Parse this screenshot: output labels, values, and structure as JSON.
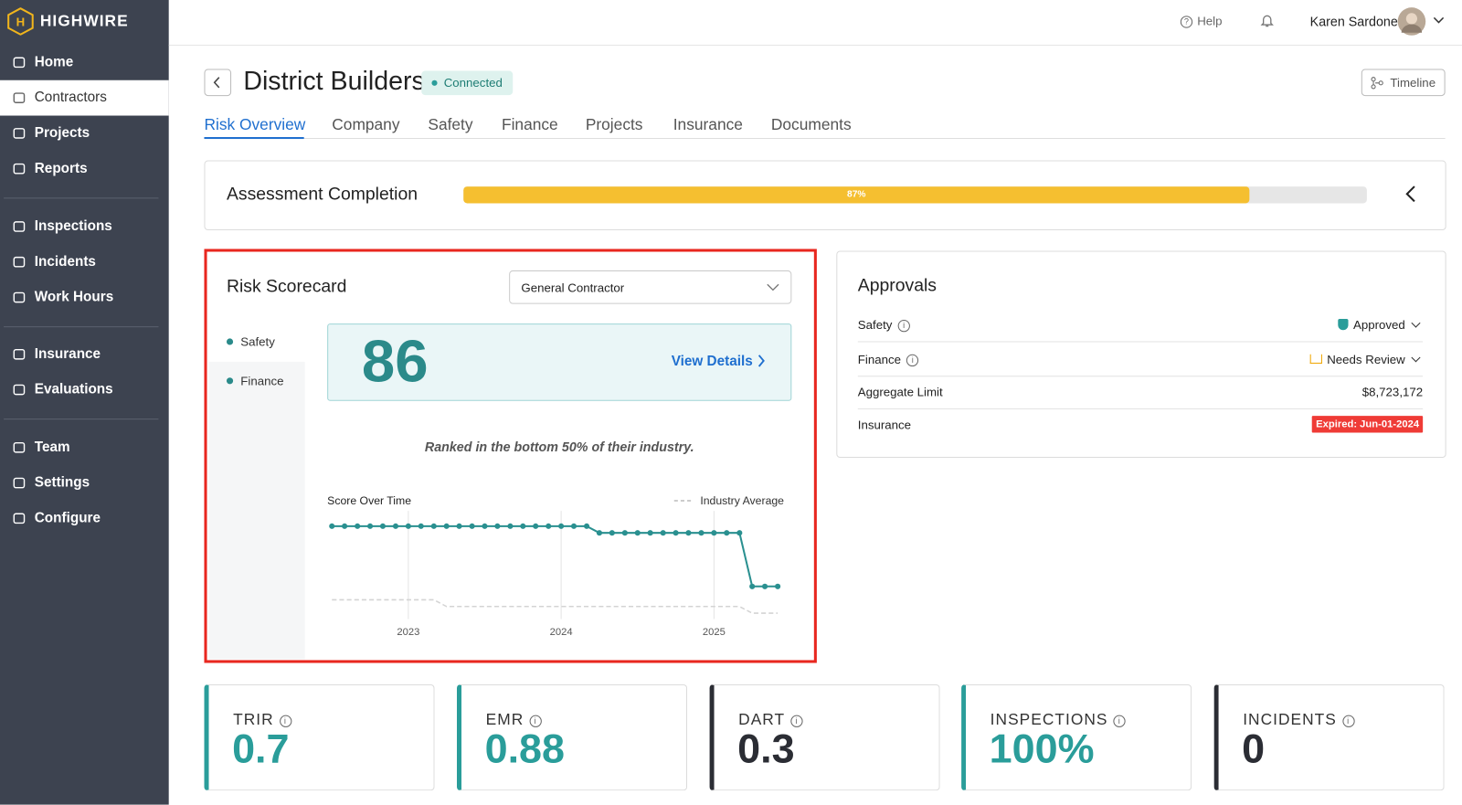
{
  "sidebar": {
    "brand": "HIGHWIRE",
    "nav": [
      "Home",
      "Contractors",
      "Projects",
      "Reports",
      "Inspections",
      "Incidents",
      "Work Hours",
      "Insurance",
      "Evaluations",
      "Team",
      "Settings",
      "Configure"
    ]
  },
  "topbar": {
    "help": "Help",
    "user": "Karen Sardone"
  },
  "header": {
    "title": "District Builders",
    "status": "Connected",
    "timeline": "Timeline"
  },
  "tabs": [
    "Risk Overview",
    "Company",
    "Safety",
    "Finance",
    "Projects",
    "Insurance",
    "Documents"
  ],
  "assessment": {
    "title": "Assessment Completion",
    "progress": {
      "value": 87,
      "label": "87%",
      "max": 100
    }
  },
  "scorecard": {
    "title": "Risk Scorecard",
    "dropdown": "General Contractor",
    "sections": [
      "Safety",
      "Finance"
    ],
    "score": 86,
    "details": "View Details",
    "note": "Ranked in the bottom 50% of their industry."
  },
  "chart_data": {
    "type": "line",
    "title": "Score Over Time",
    "x": [
      2022.5,
      2022.583,
      2022.667,
      2022.75,
      2022.833,
      2022.917,
      2023,
      2023.083,
      2023.167,
      2023.25,
      2023.333,
      2023.417,
      2023.5,
      2023.583,
      2023.667,
      2023.75,
      2023.833,
      2023.917,
      2024,
      2024.083,
      2024.167,
      2024.25,
      2024.333,
      2024.417,
      2024.5,
      2024.583,
      2024.667,
      2024.75,
      2024.833,
      2024.917,
      2025,
      2025.083,
      2025.167,
      2025.25,
      2025.333,
      2025.417
    ],
    "series": [
      {
        "color": "#2a9090",
        "markers": true,
        "values": [
          95,
          95,
          95,
          95,
          95,
          95,
          95,
          95,
          95,
          95,
          95,
          95,
          95,
          95,
          95,
          95,
          95,
          95,
          95,
          95,
          95,
          94,
          94,
          94,
          94,
          94,
          94,
          94,
          94,
          94,
          94,
          94,
          94,
          86,
          86,
          86
        ]
      },
      {
        "name": "Industry Average",
        "color": "#d4d4d4",
        "dashed": true,
        "markers": false,
        "values": [
          84,
          84,
          84,
          84,
          84,
          84,
          84,
          84,
          84,
          83,
          83,
          83,
          83,
          83,
          83,
          83,
          83,
          83,
          83,
          83,
          83,
          83,
          83,
          83,
          83,
          83,
          83,
          83,
          83,
          83,
          83,
          83,
          83,
          82,
          82,
          82
        ]
      }
    ],
    "xlim": [
      2022.48,
      2025.5
    ],
    "ylim": [
      80,
      97
    ],
    "xticks": [
      2023,
      2024,
      2025
    ],
    "grid": true
  },
  "approvals": {
    "title": "Approvals",
    "rows": [
      {
        "label": "Safety",
        "value": "Approved"
      },
      {
        "label": "Finance",
        "value": "Needs Review"
      },
      {
        "label": "Aggregate Limit",
        "value": "$8,723,172"
      },
      {
        "label": "Insurance",
        "value": "Expired: Jun-01-2024"
      }
    ]
  },
  "kpis": [
    {
      "label": "TRIR",
      "value": "0.7"
    },
    {
      "label": "EMR",
      "value": "0.88"
    },
    {
      "label": "DART",
      "value": "0.3"
    },
    {
      "label": "INSPECTIONS",
      "value": "100%"
    },
    {
      "label": "INCIDENTS",
      "value": "0"
    }
  ]
}
